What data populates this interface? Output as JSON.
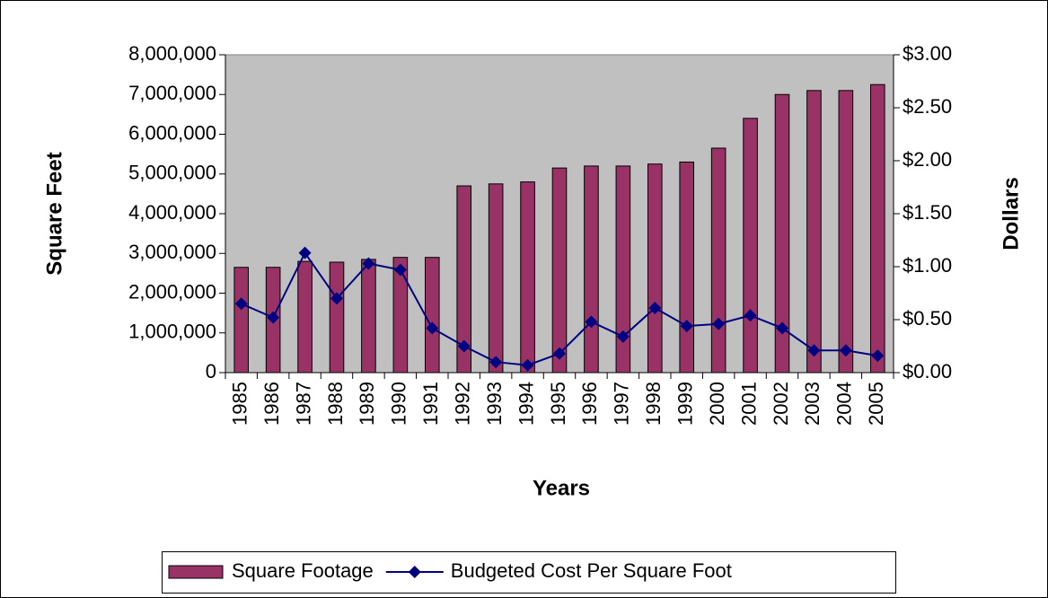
{
  "chart_data": {
    "type": "bar",
    "xlabel": "Years",
    "ylabel": "Square Feet",
    "y2label": "Dollars",
    "categories": [
      "1985",
      "1986",
      "1987",
      "1988",
      "1989",
      "1990",
      "1991",
      "1992",
      "1993",
      "1994",
      "1995",
      "1996",
      "1997",
      "1998",
      "1999",
      "2000",
      "2001",
      "2002",
      "2003",
      "2004",
      "2005"
    ],
    "series": [
      {
        "name": "Square Footage",
        "type": "bar",
        "color": "#993366",
        "values": [
          2650000,
          2650000,
          2800000,
          2780000,
          2850000,
          2900000,
          2900000,
          4700000,
          4750000,
          4800000,
          5150000,
          5200000,
          5200000,
          5250000,
          5300000,
          5650000,
          6400000,
          7000000,
          7100000,
          7100000,
          7250000
        ]
      },
      {
        "name": "Budgeted Cost Per Square Foot",
        "type": "line",
        "axis": "y2",
        "color": "#000080",
        "values": [
          0.65,
          0.52,
          1.13,
          0.7,
          1.03,
          0.97,
          0.42,
          0.25,
          0.1,
          0.07,
          0.18,
          0.48,
          0.34,
          0.61,
          0.44,
          0.46,
          0.54,
          0.42,
          0.21,
          0.21,
          0.16
        ]
      }
    ],
    "ylim": [
      0,
      8000000
    ],
    "yticks": [
      0,
      {
        "value": 1000000,
        "label": "1,000,000"
      },
      {
        "value": 2000000,
        "label": "2,000,000"
      },
      {
        "value": 3000000,
        "label": "3,000,000"
      },
      {
        "value": 4000000,
        "label": "4,000,000"
      },
      {
        "value": 5000000,
        "label": "5,000,000"
      },
      {
        "value": 6000000,
        "label": "6,000,000"
      },
      {
        "value": 7000000,
        "label": "7,000,000"
      },
      {
        "value": 8000000,
        "label": "8,000,000"
      }
    ],
    "y2lim": [
      0,
      3
    ],
    "y2ticks": [
      {
        "value": 0,
        "label": "$0.00"
      },
      {
        "value": 0.5,
        "label": "$0.50"
      },
      {
        "value": 1,
        "label": "$1.00"
      },
      {
        "value": 1.5,
        "label": "$1.50"
      },
      {
        "value": 2,
        "label": "$2.00"
      },
      {
        "value": 2.5,
        "label": "$2.50"
      },
      {
        "value": 3,
        "label": "$3.00"
      }
    ],
    "grid": false,
    "legend": "bottom",
    "plot_background": "#c0c0c0"
  }
}
